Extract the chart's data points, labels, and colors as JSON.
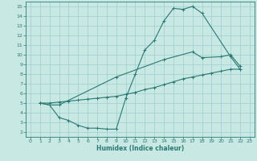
{
  "xlabel": "Humidex (Indice chaleur)",
  "xlim": [
    -0.5,
    23.5
  ],
  "ylim": [
    1.5,
    15.5
  ],
  "xticks": [
    0,
    1,
    2,
    3,
    4,
    5,
    6,
    7,
    8,
    9,
    10,
    11,
    12,
    13,
    14,
    15,
    16,
    17,
    18,
    19,
    20,
    21,
    22,
    23
  ],
  "yticks": [
    2,
    3,
    4,
    5,
    6,
    7,
    8,
    9,
    10,
    11,
    12,
    13,
    14,
    15
  ],
  "bg_color": "#c8e8e4",
  "line_color": "#2a7a72",
  "grid_color": "#9ecece",
  "line1_x": [
    1,
    2,
    3,
    4,
    5,
    6,
    7,
    8,
    9,
    10,
    11,
    12,
    13,
    14,
    15,
    16,
    17,
    18,
    21,
    22
  ],
  "line1_y": [
    5.0,
    4.8,
    3.5,
    3.2,
    2.7,
    2.4,
    2.4,
    2.3,
    2.3,
    5.5,
    8.0,
    10.5,
    11.5,
    13.5,
    14.8,
    14.7,
    15.0,
    14.3,
    9.8,
    8.5
  ],
  "line2_x": [
    1,
    2,
    3,
    4,
    5,
    6,
    7,
    8,
    9,
    10,
    11,
    12,
    13,
    14,
    15,
    16,
    17,
    18,
    19,
    20,
    21,
    22
  ],
  "line2_y": [
    5.0,
    5.0,
    5.1,
    5.2,
    5.3,
    5.4,
    5.5,
    5.6,
    5.7,
    5.9,
    6.1,
    6.4,
    6.6,
    6.9,
    7.2,
    7.5,
    7.7,
    7.9,
    8.1,
    8.3,
    8.5,
    8.5
  ],
  "line3_x": [
    1,
    2,
    3,
    9,
    14,
    17,
    18,
    20,
    21,
    22
  ],
  "line3_y": [
    5.0,
    4.8,
    4.8,
    7.7,
    9.5,
    10.3,
    9.7,
    9.8,
    10.0,
    8.8
  ]
}
